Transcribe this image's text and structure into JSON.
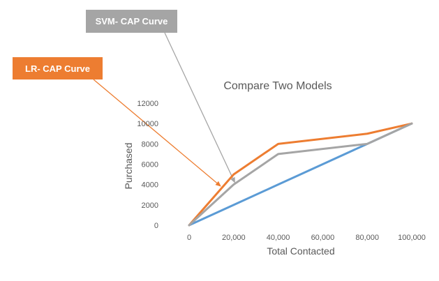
{
  "chart_data": {
    "type": "line",
    "title": "Compare Two Models",
    "xlabel": "Total Contacted",
    "ylabel": "Purchased",
    "x_tick_labels": [
      "0",
      "20,000",
      "40,000",
      "60,000",
      "80,000",
      "100,000"
    ],
    "y_tick_labels": [
      "0",
      "2000",
      "4000",
      "6000",
      "8000",
      "10000",
      "12000"
    ],
    "xlim": [
      0,
      100000
    ],
    "ylim": [
      0,
      12000
    ],
    "grid": false,
    "legend": "none",
    "series": [
      {
        "color": "#5b9bd5",
        "points": [
          [
            0,
            0
          ],
          [
            20000,
            2000
          ],
          [
            40000,
            4000
          ],
          [
            60000,
            6000
          ],
          [
            80000,
            8000
          ],
          [
            100000,
            10000
          ]
        ]
      },
      {
        "color": "#ed7d31",
        "points": [
          [
            0,
            0
          ],
          [
            20000,
            5000
          ],
          [
            40000,
            8000
          ],
          [
            80000,
            9000
          ],
          [
            100000,
            10000
          ]
        ]
      },
      {
        "color": "#a5a5a5",
        "points": [
          [
            0,
            0
          ],
          [
            20000,
            4000
          ],
          [
            40000,
            7000
          ],
          [
            80000,
            8000
          ],
          [
            100000,
            10000
          ]
        ]
      }
    ],
    "annotations": [
      {
        "id": "svm",
        "text": "SVM- CAP Curve",
        "color": "#a5a5a5",
        "target": [
          20000,
          4000
        ]
      },
      {
        "id": "lr",
        "text": "LR- CAP Curve",
        "color": "#ed7d31",
        "target": [
          15000,
          3800
        ]
      }
    ]
  }
}
